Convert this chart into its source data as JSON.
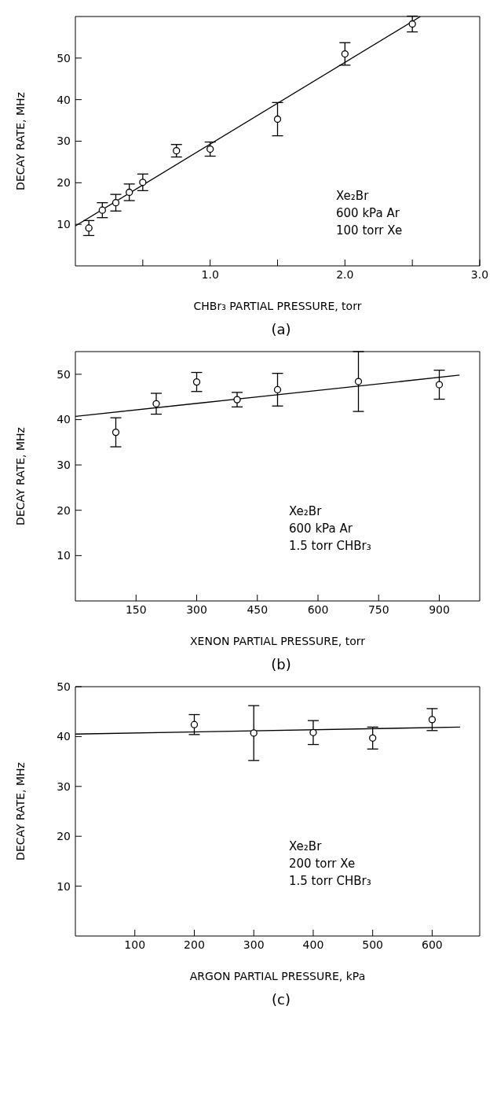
{
  "chart_data": [
    {
      "type": "scatter",
      "xlabel": "CHBr₃ PARTIAL PRESSURE, torr",
      "ylabel": "DECAY RATE, MHz",
      "xlim": [
        0,
        3
      ],
      "ylim": [
        0,
        60
      ],
      "xticks": [
        {
          "value": 0.5,
          "label": null
        },
        {
          "value": 1,
          "label": "1.0"
        },
        {
          "value": 1.5,
          "label": null
        },
        {
          "value": 2,
          "label": "2.0"
        },
        {
          "value": 2.5,
          "label": null
        },
        {
          "value": 3,
          "label": "3.0"
        }
      ],
      "yticks": [
        10,
        20,
        30,
        40,
        50
      ],
      "marker": "circle",
      "series": [
        {
          "color": "#000000",
          "x": [
            0.1,
            0.2,
            0.3,
            0.4,
            0.5,
            0.75,
            1.0,
            1.5,
            2.0,
            2.5
          ],
          "values": [
            9.1,
            13.4,
            15.2,
            17.7,
            20.1,
            27.7,
            28.1,
            35.3,
            51,
            58.2
          ],
          "errors": [
            1.8,
            1.8,
            2,
            2,
            2,
            1.5,
            1.7,
            4,
            2.7,
            1.9
          ]
        },
        {
          "type": "line",
          "color": "#000000",
          "marker": "none",
          "x": [
            0,
            2.56
          ],
          "values": [
            9.6,
            60
          ]
        }
      ],
      "annotations": [
        "Xe₂Br",
        "600 kPa Ar",
        "100 torr Xe",
        "(a)"
      ]
    },
    {
      "type": "scatter",
      "xlabel": "XENON PARTIAL PRESSURE, torr",
      "ylabel": "DECAY RATE, MHz",
      "xlim": [
        0,
        1000
      ],
      "ylim": [
        0,
        55
      ],
      "xticks": [
        150,
        300,
        450,
        600,
        750,
        900
      ],
      "yticks": [
        10,
        20,
        30,
        40,
        50
      ],
      "marker": "circle",
      "series": [
        {
          "color": "#000000",
          "x": [
            100,
            200,
            300,
            400,
            500,
            700,
            900
          ],
          "values": [
            37.2,
            43.5,
            48.3,
            44.4,
            46.6,
            48.4,
            47.7
          ],
          "errors": [
            3.2,
            2.3,
            2.1,
            1.6,
            3.6,
            6.6,
            3.2
          ]
        },
        {
          "type": "line",
          "color": "#000000",
          "marker": "none",
          "x": [
            0,
            950
          ],
          "values": [
            40.7,
            49.8
          ]
        }
      ],
      "annotations": [
        "Xe₂Br",
        "600 kPa Ar",
        "1.5 torr CHBr₃",
        "(b)"
      ]
    },
    {
      "type": "scatter",
      "xlabel": "ARGON PARTIAL PRESSURE, kPa",
      "ylabel": "DECAY RATE, MHz",
      "xlim": [
        0,
        680
      ],
      "ylim": [
        0,
        50
      ],
      "xticks": [
        100,
        200,
        300,
        400,
        500,
        600
      ],
      "yticks": [
        10,
        20,
        30,
        40,
        50
      ],
      "marker": "circle",
      "series": [
        {
          "color": "#000000",
          "x": [
            200,
            300,
            400,
            500,
            600
          ],
          "values": [
            42.4,
            40.7,
            40.8,
            39.7,
            43.4
          ],
          "errors": [
            2,
            5.5,
            2.4,
            2.2,
            2.2
          ]
        },
        {
          "type": "line",
          "color": "#000000",
          "marker": "none",
          "x": [
            0,
            647
          ],
          "values": [
            40.5,
            41.9
          ]
        }
      ],
      "annotations": [
        "Xe₂Br",
        "200 torr Xe",
        "1.5 torr CHBr₃",
        "(c)"
      ]
    }
  ]
}
